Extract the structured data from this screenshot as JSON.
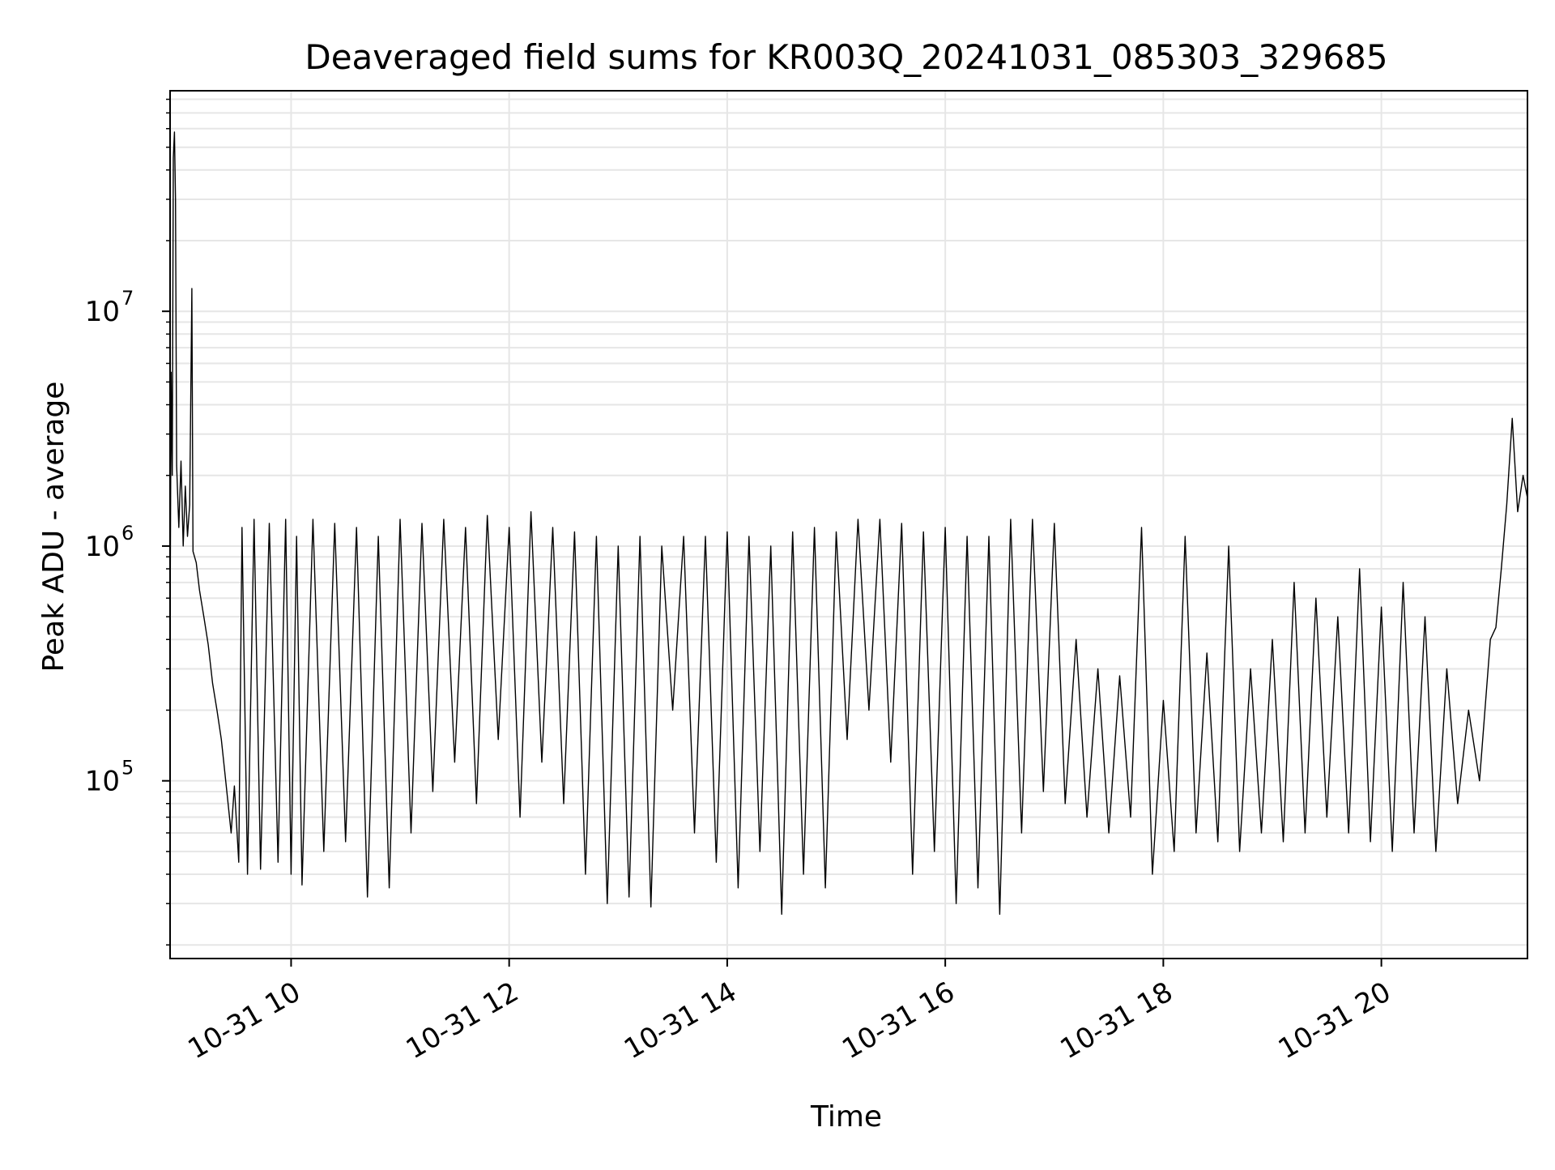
{
  "chart_data": {
    "type": "line",
    "title": "Deaveraged field sums for KR003Q_20241031_085303_329685",
    "xlabel": "Time",
    "ylabel": "Peak ADU - average",
    "yscale": "log",
    "x_unit": "hours on 10-31",
    "xlim": [
      8.89,
      21.34
    ],
    "ylim": [
      17500,
      87000000
    ],
    "grid": true,
    "line_color": "#000000",
    "grid_color": "#e6e6e6",
    "x_ticks": [
      {
        "value": 10,
        "label": "10-31 10"
      },
      {
        "value": 12,
        "label": "10-31 12"
      },
      {
        "value": 14,
        "label": "10-31 14"
      },
      {
        "value": 16,
        "label": "10-31 16"
      },
      {
        "value": 18,
        "label": "10-31 18"
      },
      {
        "value": 20,
        "label": "10-31 20"
      }
    ],
    "y_ticks": [
      {
        "value": 100000,
        "base": "10",
        "exp": "5"
      },
      {
        "value": 1000000,
        "base": "10",
        "exp": "6"
      },
      {
        "value": 10000000,
        "base": "10",
        "exp": "7"
      }
    ],
    "series": [
      {
        "points": [
          [
            8.89,
            420000
          ],
          [
            8.9,
            5500000
          ],
          [
            8.91,
            2000000
          ],
          [
            8.92,
            45000000
          ],
          [
            8.93,
            58000000
          ],
          [
            8.94,
            30000000
          ],
          [
            8.95,
            2200000
          ],
          [
            8.97,
            1200000
          ],
          [
            8.99,
            2300000
          ],
          [
            9.01,
            1000000
          ],
          [
            9.03,
            1800000
          ],
          [
            9.05,
            1100000
          ],
          [
            9.07,
            1500000
          ],
          [
            9.09,
            12500000
          ],
          [
            9.1,
            950000
          ],
          [
            9.13,
            850000
          ],
          [
            9.16,
            650000
          ],
          [
            9.2,
            500000
          ],
          [
            9.24,
            380000
          ],
          [
            9.28,
            260000
          ],
          [
            9.32,
            200000
          ],
          [
            9.36,
            150000
          ],
          [
            9.4,
            100000
          ],
          [
            9.45,
            60000
          ],
          [
            9.48,
            95000
          ],
          [
            9.52,
            45000
          ],
          [
            9.55,
            1200000
          ],
          [
            9.6,
            40000
          ],
          [
            9.66,
            1300000
          ],
          [
            9.72,
            42000
          ],
          [
            9.8,
            1250000
          ],
          [
            9.88,
            45000
          ],
          [
            9.95,
            1300000
          ],
          [
            10.0,
            40000
          ],
          [
            10.05,
            1100000
          ],
          [
            10.1,
            36000
          ],
          [
            10.2,
            1300000
          ],
          [
            10.3,
            50000
          ],
          [
            10.4,
            1250000
          ],
          [
            10.5,
            55000
          ],
          [
            10.6,
            1200000
          ],
          [
            10.7,
            32000
          ],
          [
            10.8,
            1100000
          ],
          [
            10.9,
            35000
          ],
          [
            11.0,
            1300000
          ],
          [
            11.1,
            60000
          ],
          [
            11.2,
            1250000
          ],
          [
            11.3,
            90000
          ],
          [
            11.4,
            1300000
          ],
          [
            11.5,
            120000
          ],
          [
            11.6,
            1200000
          ],
          [
            11.7,
            80000
          ],
          [
            11.8,
            1350000
          ],
          [
            11.9,
            150000
          ],
          [
            12.0,
            1200000
          ],
          [
            12.1,
            70000
          ],
          [
            12.2,
            1400000
          ],
          [
            12.3,
            120000
          ],
          [
            12.4,
            1200000
          ],
          [
            12.5,
            80000
          ],
          [
            12.6,
            1150000
          ],
          [
            12.7,
            40000
          ],
          [
            12.8,
            1100000
          ],
          [
            12.9,
            30000
          ],
          [
            13.0,
            1000000
          ],
          [
            13.1,
            32000
          ],
          [
            13.2,
            1100000
          ],
          [
            13.3,
            29000
          ],
          [
            13.4,
            1000000
          ],
          [
            13.5,
            200000
          ],
          [
            13.6,
            1100000
          ],
          [
            13.7,
            60000
          ],
          [
            13.8,
            1100000
          ],
          [
            13.9,
            45000
          ],
          [
            14.0,
            1150000
          ],
          [
            14.1,
            35000
          ],
          [
            14.2,
            1100000
          ],
          [
            14.3,
            50000
          ],
          [
            14.4,
            1000000
          ],
          [
            14.5,
            27000
          ],
          [
            14.6,
            1150000
          ],
          [
            14.7,
            40000
          ],
          [
            14.8,
            1200000
          ],
          [
            14.9,
            35000
          ],
          [
            15.0,
            1150000
          ],
          [
            15.1,
            150000
          ],
          [
            15.2,
            1300000
          ],
          [
            15.3,
            200000
          ],
          [
            15.4,
            1300000
          ],
          [
            15.5,
            120000
          ],
          [
            15.6,
            1250000
          ],
          [
            15.7,
            40000
          ],
          [
            15.8,
            1150000
          ],
          [
            15.9,
            50000
          ],
          [
            16.0,
            1200000
          ],
          [
            16.1,
            30000
          ],
          [
            16.2,
            1100000
          ],
          [
            16.3,
            35000
          ],
          [
            16.4,
            1100000
          ],
          [
            16.5,
            27000
          ],
          [
            16.6,
            1300000
          ],
          [
            16.7,
            60000
          ],
          [
            16.8,
            1300000
          ],
          [
            16.9,
            90000
          ],
          [
            17.0,
            1250000
          ],
          [
            17.1,
            80000
          ],
          [
            17.2,
            400000
          ],
          [
            17.3,
            70000
          ],
          [
            17.4,
            300000
          ],
          [
            17.5,
            60000
          ],
          [
            17.6,
            280000
          ],
          [
            17.7,
            70000
          ],
          [
            17.8,
            1200000
          ],
          [
            17.9,
            40000
          ],
          [
            18.0,
            220000
          ],
          [
            18.1,
            50000
          ],
          [
            18.2,
            1100000
          ],
          [
            18.3,
            60000
          ],
          [
            18.4,
            350000
          ],
          [
            18.5,
            55000
          ],
          [
            18.6,
            1000000
          ],
          [
            18.7,
            50000
          ],
          [
            18.8,
            300000
          ],
          [
            18.9,
            60000
          ],
          [
            19.0,
            400000
          ],
          [
            19.1,
            55000
          ],
          [
            19.2,
            700000
          ],
          [
            19.3,
            60000
          ],
          [
            19.4,
            600000
          ],
          [
            19.5,
            70000
          ],
          [
            19.6,
            500000
          ],
          [
            19.7,
            60000
          ],
          [
            19.8,
            800000
          ],
          [
            19.9,
            55000
          ],
          [
            20.0,
            550000
          ],
          [
            20.1,
            50000
          ],
          [
            20.2,
            700000
          ],
          [
            20.3,
            60000
          ],
          [
            20.4,
            500000
          ],
          [
            20.5,
            50000
          ],
          [
            20.6,
            300000
          ],
          [
            20.7,
            80000
          ],
          [
            20.8,
            200000
          ],
          [
            20.9,
            100000
          ],
          [
            21.0,
            400000
          ],
          [
            21.05,
            450000
          ],
          [
            21.1,
            800000
          ],
          [
            21.15,
            1500000
          ],
          [
            21.2,
            3500000
          ],
          [
            21.25,
            1400000
          ],
          [
            21.3,
            2000000
          ],
          [
            21.34,
            1600000
          ]
        ]
      }
    ]
  }
}
